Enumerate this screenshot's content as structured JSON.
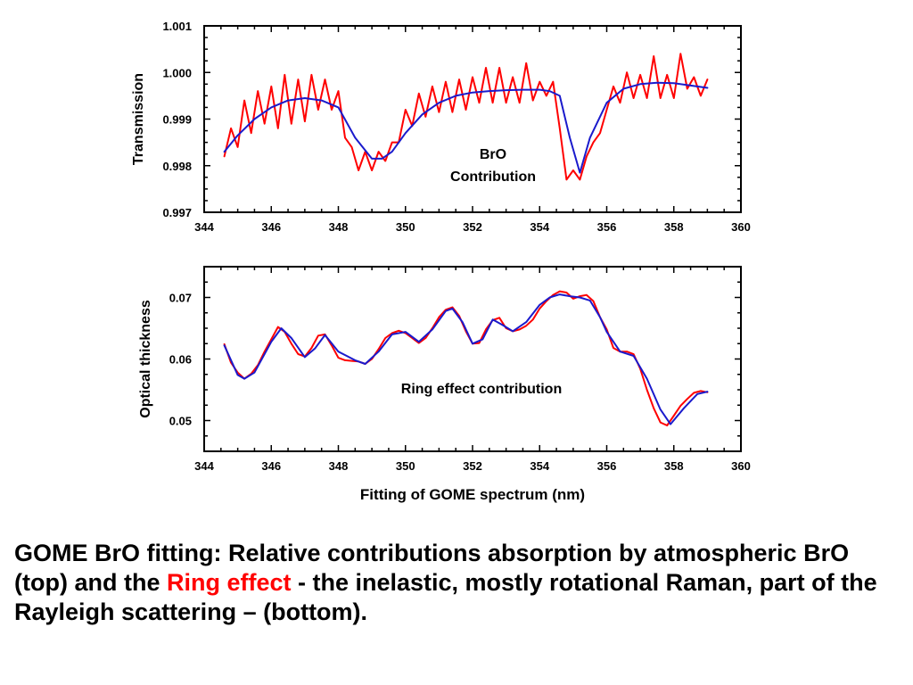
{
  "colors": {
    "observed": "#ff0000",
    "fit": "#1a1acc",
    "axis": "#000000",
    "highlight": "#ff0000"
  },
  "figure": {
    "xlabel": "Fitting of GOME spectrum (nm)"
  },
  "chart_data": [
    {
      "type": "line",
      "ylabel": "Transmission",
      "annotation_lines": [
        "BrO",
        "Contribution"
      ],
      "xlim": [
        344,
        360
      ],
      "ylim": [
        0.997,
        1.001
      ],
      "xticks": [
        "344",
        "346",
        "348",
        "350",
        "352",
        "354",
        "356",
        "358",
        "360"
      ],
      "yticks": [
        "0.997",
        "0.998",
        "0.999",
        "1.000",
        "1.001"
      ],
      "series": [
        {
          "color": "red",
          "x": [
            344.6,
            344.8,
            345.0,
            345.2,
            345.4,
            345.6,
            345.8,
            346.0,
            346.2,
            346.4,
            346.6,
            346.8,
            347.0,
            347.2,
            347.4,
            347.6,
            347.8,
            348.0,
            348.2,
            348.4,
            348.6,
            348.8,
            349.0,
            349.2,
            349.4,
            349.6,
            349.8,
            350.0,
            350.2,
            350.4,
            350.6,
            350.8,
            351.0,
            351.2,
            351.4,
            351.6,
            351.8,
            352.0,
            352.2,
            352.4,
            352.6,
            352.8,
            353.0,
            353.2,
            353.4,
            353.6,
            353.8,
            354.0,
            354.2,
            354.4,
            354.6,
            354.8,
            355.0,
            355.2,
            355.4,
            355.6,
            355.8,
            356.0,
            356.2,
            356.4,
            356.6,
            356.8,
            357.0,
            357.2,
            357.4,
            357.6,
            357.8,
            358.0,
            358.2,
            358.4,
            358.6,
            358.8,
            359.0
          ],
          "y": [
            0.9982,
            0.9988,
            0.9984,
            0.9994,
            0.9987,
            0.9996,
            0.9989,
            0.9997,
            0.9988,
            0.99995,
            0.9989,
            0.99985,
            0.99895,
            0.99995,
            0.9992,
            0.99985,
            0.9992,
            0.9996,
            0.9986,
            0.9984,
            0.9979,
            0.9983,
            0.9979,
            0.9983,
            0.9981,
            0.9985,
            0.9985,
            0.9992,
            0.99885,
            0.99955,
            0.99905,
            0.9997,
            0.99915,
            0.9998,
            0.99915,
            0.99985,
            0.9992,
            0.9999,
            0.99935,
            1.0001,
            0.99935,
            1.0001,
            0.99935,
            0.9999,
            0.99935,
            1.0002,
            0.9994,
            0.9998,
            0.9995,
            0.9998,
            0.9988,
            0.9977,
            0.9979,
            0.9977,
            0.9982,
            0.9985,
            0.9987,
            0.9992,
            0.9997,
            0.99935,
            1.0,
            0.99945,
            0.99995,
            0.99945,
            1.00035,
            0.99945,
            0.99995,
            0.99945,
            1.0004,
            0.99965,
            0.9999,
            0.9995,
            0.99985
          ]
        },
        {
          "color": "blue",
          "x": [
            344.6,
            345.0,
            345.5,
            346.0,
            346.5,
            347.0,
            347.5,
            348.0,
            348.5,
            349.0,
            349.3,
            349.6,
            350.0,
            350.5,
            351.0,
            351.5,
            352.0,
            352.5,
            353.0,
            353.5,
            354.0,
            354.3,
            354.6,
            354.9,
            355.2,
            355.5,
            356.0,
            356.5,
            357.0,
            357.5,
            358.0,
            358.5,
            359.0
          ],
          "y": [
            0.9983,
            0.99865,
            0.999,
            0.99925,
            0.9994,
            0.99945,
            0.9994,
            0.99925,
            0.9986,
            0.99815,
            0.99815,
            0.9983,
            0.9987,
            0.9991,
            0.99935,
            0.9995,
            0.99957,
            0.9996,
            0.99962,
            0.99963,
            0.99963,
            0.9996,
            0.9995,
            0.9986,
            0.99785,
            0.9986,
            0.99935,
            0.99965,
            0.99975,
            0.99978,
            0.99977,
            0.99972,
            0.99967
          ]
        }
      ]
    },
    {
      "type": "line",
      "ylabel": "Optical thickness",
      "annotation_lines": [
        "Ring effect contribution"
      ],
      "xlim": [
        344,
        360
      ],
      "ylim": [
        0.045,
        0.075
      ],
      "xticks": [
        "344",
        "346",
        "348",
        "350",
        "352",
        "354",
        "356",
        "358",
        "360"
      ],
      "yticks": [
        "0.05",
        "0.06",
        "0.07"
      ],
      "series": [
        {
          "color": "red",
          "x": [
            344.6,
            344.8,
            345.0,
            345.2,
            345.4,
            345.6,
            345.8,
            346.0,
            346.2,
            346.4,
            346.6,
            346.8,
            347.0,
            347.2,
            347.4,
            347.6,
            347.8,
            348.0,
            348.2,
            348.4,
            348.6,
            348.8,
            349.0,
            349.2,
            349.4,
            349.6,
            349.8,
            350.0,
            350.2,
            350.4,
            350.6,
            350.8,
            351.0,
            351.2,
            351.4,
            351.6,
            351.8,
            352.0,
            352.2,
            352.4,
            352.6,
            352.8,
            353.0,
            353.2,
            353.4,
            353.6,
            353.8,
            354.0,
            354.2,
            354.4,
            354.6,
            354.8,
            355.0,
            355.2,
            355.4,
            355.6,
            355.8,
            356.0,
            356.2,
            356.4,
            356.6,
            356.8,
            357.0,
            357.2,
            357.4,
            357.6,
            357.8,
            358.0,
            358.2,
            358.4,
            358.6,
            358.8,
            359.0
          ],
          "y": [
            0.0624,
            0.0594,
            0.0578,
            0.0568,
            0.0576,
            0.059,
            0.0612,
            0.0632,
            0.0652,
            0.0644,
            0.0625,
            0.0608,
            0.0604,
            0.0618,
            0.0638,
            0.064,
            0.0622,
            0.0602,
            0.0598,
            0.0597,
            0.0596,
            0.0592,
            0.06,
            0.0616,
            0.0634,
            0.0642,
            0.0646,
            0.0642,
            0.0634,
            0.0626,
            0.0634,
            0.065,
            0.0668,
            0.068,
            0.0684,
            0.067,
            0.0645,
            0.0625,
            0.0626,
            0.0648,
            0.0663,
            0.0667,
            0.065,
            0.0645,
            0.0648,
            0.0654,
            0.0664,
            0.0682,
            0.0694,
            0.0704,
            0.071,
            0.0708,
            0.0698,
            0.0702,
            0.0704,
            0.0694,
            0.0668,
            0.0648,
            0.0618,
            0.0612,
            0.0612,
            0.0608,
            0.0584,
            0.055,
            0.052,
            0.0497,
            0.0492,
            0.0508,
            0.0524,
            0.0535,
            0.0545,
            0.0548,
            0.0546
          ]
        },
        {
          "color": "blue",
          "x": [
            344.6,
            345.0,
            345.2,
            345.5,
            346.0,
            346.3,
            346.6,
            347.0,
            347.3,
            347.6,
            348.0,
            348.5,
            348.8,
            349.2,
            349.6,
            350.0,
            350.4,
            350.8,
            351.2,
            351.4,
            351.7,
            352.0,
            352.3,
            352.6,
            352.9,
            353.2,
            353.6,
            354.0,
            354.3,
            354.6,
            354.9,
            355.2,
            355.5,
            355.8,
            356.0,
            356.4,
            356.8,
            357.2,
            357.6,
            357.9,
            358.3,
            358.7,
            359.0
          ],
          "y": [
            0.0622,
            0.0574,
            0.0568,
            0.0578,
            0.0628,
            0.065,
            0.0634,
            0.0603,
            0.0617,
            0.0639,
            0.0612,
            0.0598,
            0.0592,
            0.0612,
            0.064,
            0.0644,
            0.0628,
            0.0648,
            0.0678,
            0.0682,
            0.066,
            0.0625,
            0.0632,
            0.0664,
            0.0655,
            0.0645,
            0.066,
            0.0688,
            0.07,
            0.0705,
            0.0702,
            0.07,
            0.0695,
            0.0668,
            0.0644,
            0.0612,
            0.0605,
            0.0568,
            0.0518,
            0.0494,
            0.052,
            0.0543,
            0.0547
          ]
        }
      ]
    }
  ],
  "caption": {
    "before": "GOME BrO fitting: Relative contributions absorption by atmospheric BrO (top) and the ",
    "highlight": "Ring effect",
    "after": " - the inelastic, mostly rotational Raman, part of the Rayleigh scattering – (bottom)."
  }
}
